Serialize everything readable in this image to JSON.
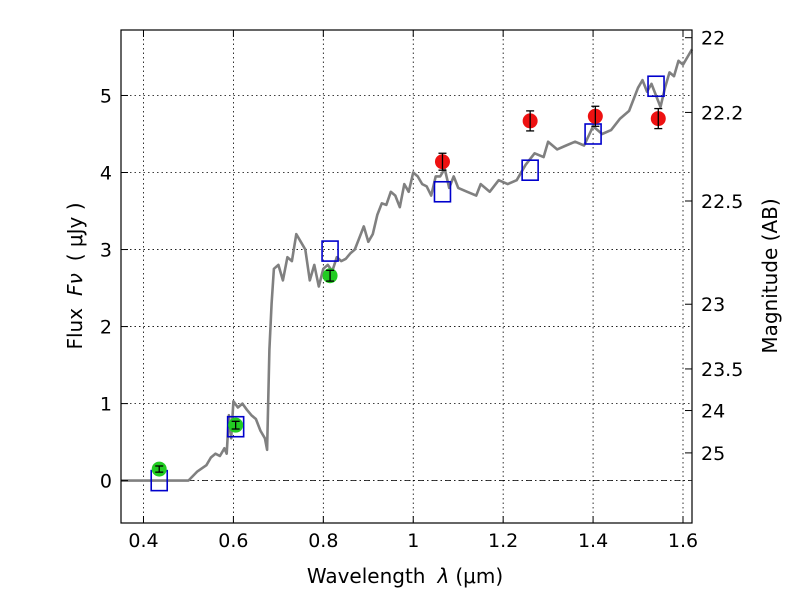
{
  "chart_data": {
    "type": "scatter",
    "xlabel_prefix": "Wavelength",
    "xlabel_symbol": "λ",
    "xlabel_unit": "(μm)",
    "ylabel_prefix": "Flux",
    "ylabel_symbol": "Fν",
    "ylabel_unit": "( μJy )",
    "y2label": "Magnitude (AB)",
    "xlim": [
      0.35,
      1.62
    ],
    "ylim": [
      -0.55,
      5.85
    ],
    "grid": true,
    "x_ticks": [
      0.4,
      0.6,
      0.8,
      1.0,
      1.2,
      1.4,
      1.6
    ],
    "x_tick_labels": [
      "0.4",
      "0.6",
      "0.8",
      "1",
      "1.2",
      "1.4",
      "1.6"
    ],
    "y_ticks": [
      0,
      1,
      2,
      3,
      4,
      5
    ],
    "y_tick_labels": [
      "0",
      "1",
      "2",
      "3",
      "4",
      "5"
    ],
    "y2_ticks": [
      {
        "label": "22",
        "flux": 5.75
      },
      {
        "label": "22.2",
        "flux": 4.78
      },
      {
        "label": "22.5",
        "flux": 3.63
      },
      {
        "label": "23",
        "flux": 2.29
      },
      {
        "label": "23.5",
        "flux": 1.45
      },
      {
        "label": "24",
        "flux": 0.91
      },
      {
        "label": "25",
        "flux": 0.36
      }
    ],
    "series": [
      {
        "marker": "circle",
        "color": "#22cc22",
        "points": [
          {
            "x": 0.435,
            "y": 0.15,
            "err": 0.04
          },
          {
            "x": 0.605,
            "y": 0.72,
            "err": 0.05
          },
          {
            "x": 0.815,
            "y": 2.66,
            "err": 0.07
          }
        ]
      },
      {
        "marker": "circle",
        "color": "#ee1111",
        "points": [
          {
            "x": 1.065,
            "y": 4.14,
            "err": 0.11
          },
          {
            "x": 1.26,
            "y": 4.67,
            "err": 0.13
          },
          {
            "x": 1.405,
            "y": 4.73,
            "err": 0.13
          },
          {
            "x": 1.545,
            "y": 4.7,
            "err": 0.13
          }
        ]
      },
      {
        "marker": "square",
        "color": "#0000cc",
        "points": [
          {
            "x": 0.435,
            "y": 0.0
          },
          {
            "x": 0.605,
            "y": 0.7
          },
          {
            "x": 0.815,
            "y": 2.98
          },
          {
            "x": 1.065,
            "y": 3.75
          },
          {
            "x": 1.26,
            "y": 4.03
          },
          {
            "x": 1.4,
            "y": 4.5
          },
          {
            "x": 1.54,
            "y": 5.12
          }
        ]
      }
    ],
    "spectrum": {
      "color": "#808080",
      "x": [
        0.35,
        0.5,
        0.52,
        0.54,
        0.55,
        0.56,
        0.57,
        0.58,
        0.585,
        0.59,
        0.595,
        0.6,
        0.61,
        0.62,
        0.63,
        0.64,
        0.65,
        0.66,
        0.67,
        0.675,
        0.68,
        0.685,
        0.69,
        0.7,
        0.71,
        0.72,
        0.73,
        0.74,
        0.75,
        0.76,
        0.77,
        0.78,
        0.79,
        0.8,
        0.81,
        0.82,
        0.83,
        0.84,
        0.85,
        0.86,
        0.87,
        0.88,
        0.89,
        0.9,
        0.91,
        0.92,
        0.93,
        0.94,
        0.95,
        0.96,
        0.97,
        0.98,
        0.99,
        1.0,
        1.01,
        1.02,
        1.03,
        1.04,
        1.05,
        1.06,
        1.07,
        1.08,
        1.09,
        1.1,
        1.12,
        1.14,
        1.15,
        1.17,
        1.19,
        1.21,
        1.23,
        1.25,
        1.27,
        1.29,
        1.3,
        1.32,
        1.34,
        1.36,
        1.38,
        1.4,
        1.42,
        1.44,
        1.46,
        1.48,
        1.5,
        1.51,
        1.52,
        1.53,
        1.54,
        1.55,
        1.56,
        1.57,
        1.58,
        1.59,
        1.6,
        1.61,
        1.62
      ],
      "y": [
        0.0,
        0.0,
        0.12,
        0.2,
        0.3,
        0.35,
        0.32,
        0.42,
        0.35,
        0.85,
        0.55,
        1.03,
        0.95,
        1.0,
        0.92,
        0.85,
        0.8,
        0.65,
        0.55,
        0.4,
        1.7,
        2.3,
        2.75,
        2.8,
        2.6,
        2.9,
        2.85,
        3.2,
        3.1,
        3.0,
        2.6,
        2.8,
        2.52,
        2.75,
        2.8,
        2.72,
        2.9,
        2.85,
        2.88,
        2.95,
        3.0,
        3.15,
        3.3,
        3.1,
        3.2,
        3.45,
        3.6,
        3.58,
        3.75,
        3.7,
        3.55,
        3.85,
        3.75,
        4.0,
        3.95,
        3.85,
        3.82,
        3.7,
        3.95,
        3.95,
        4.05,
        3.8,
        3.95,
        3.8,
        3.75,
        3.7,
        3.85,
        3.75,
        3.9,
        3.85,
        3.9,
        4.1,
        4.25,
        4.2,
        4.4,
        4.3,
        4.35,
        4.4,
        4.35,
        4.6,
        4.5,
        4.55,
        4.7,
        4.8,
        5.1,
        5.2,
        5.05,
        5.15,
        5.0,
        4.85,
        5.1,
        5.3,
        5.25,
        5.45,
        5.4,
        5.5,
        5.6
      ]
    }
  }
}
